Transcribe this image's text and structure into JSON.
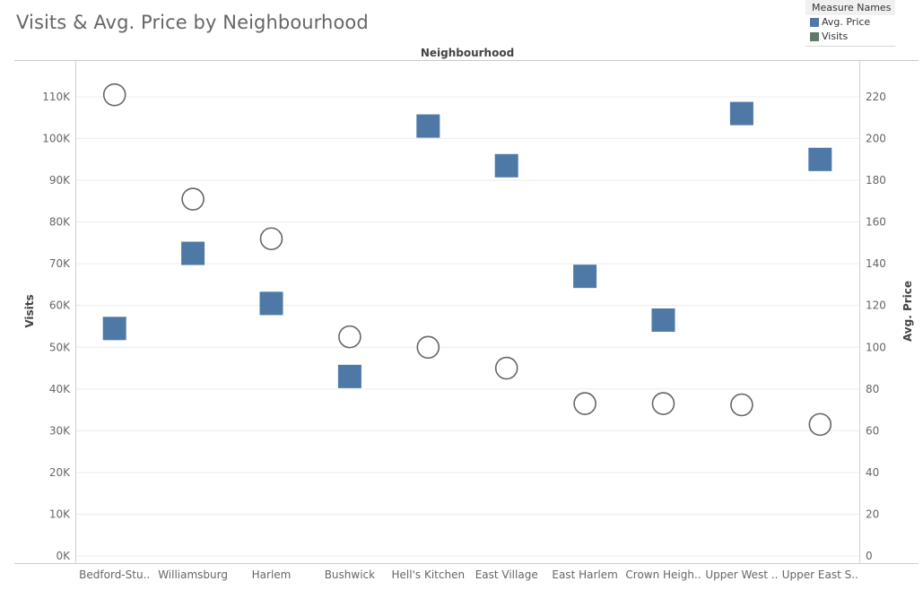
{
  "title": "Visits & Avg. Price by Neighbourhood",
  "legend": {
    "title": "Measure Names",
    "items": [
      {
        "label": "Avg. Price",
        "color": "#4e79a7"
      },
      {
        "label": "Visits",
        "color": "#5f7a6a"
      }
    ]
  },
  "chart_data": {
    "type": "scatter",
    "title": "Visits & Avg. Price by Neighbourhood",
    "column_header": "Neighbourhood",
    "categories": [
      "Bedford-Stu..",
      "Williamsburg",
      "Harlem",
      "Bushwick",
      "Hell's Kitchen",
      "East Village",
      "East Harlem",
      "Crown Heigh..",
      "Upper West ..",
      "Upper East S.."
    ],
    "left_axis": {
      "label": "Visits",
      "ylim": [
        0,
        115000
      ],
      "ticks": [
        0,
        10000,
        20000,
        30000,
        40000,
        50000,
        60000,
        70000,
        80000,
        90000,
        100000,
        110000
      ],
      "tick_labels": [
        "0K",
        "10K",
        "20K",
        "30K",
        "40K",
        "50K",
        "60K",
        "70K",
        "80K",
        "90K",
        "100K",
        "110K"
      ]
    },
    "right_axis": {
      "label": "Avg. Price",
      "ylim": [
        0,
        230
      ],
      "ticks": [
        0,
        20,
        40,
        60,
        80,
        100,
        120,
        140,
        160,
        180,
        200,
        220
      ],
      "tick_labels": [
        "0",
        "20",
        "40",
        "60",
        "80",
        "100",
        "120",
        "140",
        "160",
        "180",
        "200",
        "220"
      ]
    },
    "series": [
      {
        "name": "Visits",
        "marker": "circle",
        "axis": "left",
        "values": [
          110500,
          85500,
          76000,
          52500,
          50000,
          45000,
          36500,
          36500,
          36200,
          31500
        ]
      },
      {
        "name": "Avg. Price",
        "marker": "square",
        "axis": "right",
        "values": [
          109,
          145,
          121,
          86,
          206,
          187,
          134,
          113,
          212,
          190
        ]
      }
    ],
    "grid": true
  }
}
